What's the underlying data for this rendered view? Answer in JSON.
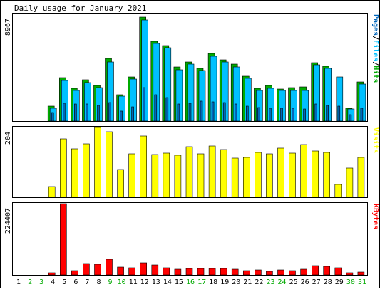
{
  "chart_data": {
    "type": "bar",
    "title": "Daily usage for January 2021",
    "categories": [
      "1",
      "2",
      "3",
      "4",
      "5",
      "6",
      "7",
      "8",
      "9",
      "10",
      "11",
      "12",
      "13",
      "14",
      "15",
      "16",
      "17",
      "18",
      "19",
      "20",
      "21",
      "22",
      "23",
      "24",
      "25",
      "26",
      "27",
      "28",
      "29",
      "30",
      "31"
    ],
    "weekend_days": [
      "2",
      "3",
      "9",
      "10",
      "16",
      "17",
      "23",
      "24",
      "30",
      "31"
    ],
    "colors": {
      "background": "#ffffff",
      "panel_border": "#000000",
      "hits": "#00aa00",
      "files": "#00c0ff",
      "pages": "#0066bb",
      "visits": "#ffff00",
      "kbytes": "#ff0000",
      "weekday_label": "#000000",
      "weekend_label": "#00aa00"
    },
    "panels": [
      {
        "name": "pages-files-hits",
        "ymax_label": "8967",
        "ylim": [
          0,
          8967
        ],
        "legend": [
          {
            "text": "Pages",
            "color": "#0066bb"
          },
          {
            "text": "/",
            "color": "#000000"
          },
          {
            "text": "Files",
            "color": "#00c0ff"
          },
          {
            "text": "/",
            "color": "#000000"
          },
          {
            "text": "Hits",
            "color": "#00aa00"
          }
        ],
        "series": [
          {
            "name": "Hits",
            "values": [
              0,
              0,
              0,
              1260,
              3640,
              2770,
              3460,
              2960,
              5240,
              2230,
              3720,
              8740,
              6710,
              6360,
              4520,
              4960,
              4420,
              5650,
              5160,
              4770,
              3770,
              2740,
              2960,
              2700,
              2790,
              2840,
              4880,
              4620,
              0,
              1080,
              3300
            ]
          },
          {
            "name": "Files",
            "values": [
              0,
              0,
              0,
              1070,
              3420,
              2560,
              3220,
              2800,
              4960,
              2080,
              3540,
              8500,
              6520,
              6160,
              4310,
              4770,
              4260,
              5420,
              4950,
              4560,
              3570,
              2590,
              2770,
              2550,
              2590,
              2590,
              4700,
              4410,
              3710,
              1000,
              3110
            ]
          },
          {
            "name": "Pages",
            "values": [
              0,
              0,
              0,
              700,
              1520,
              1420,
              1430,
              1310,
              1560,
              820,
              1220,
              2820,
              2230,
              1980,
              1410,
              1520,
              1670,
              1590,
              1540,
              1450,
              1250,
              1120,
              1050,
              1090,
              1070,
              1030,
              1410,
              1340,
              1280,
              540,
              1070
            ]
          }
        ]
      },
      {
        "name": "visits",
        "ymax_label": "204",
        "ylim": [
          0,
          204
        ],
        "legend": [
          {
            "text": "Visits",
            "color": "#ffff00"
          }
        ],
        "series": [
          {
            "name": "Visits",
            "values": [
              0,
              0,
              0,
              32,
              170,
              141,
              157,
              204,
              192,
              81,
              128,
              180,
              125,
              130,
              122,
              148,
              126,
              150,
              139,
              114,
              116,
              131,
              127,
              143,
              130,
              153,
              136,
              132,
              37,
              86,
              116
            ]
          }
        ]
      },
      {
        "name": "kbytes",
        "ymax_label": "224407",
        "ylim": [
          0,
          224407
        ],
        "legend": [
          {
            "text": "KBytes",
            "color": "#ff0000"
          }
        ],
        "series": [
          {
            "name": "KBytes",
            "values": [
              0,
              0,
              0,
              6300,
              224407,
              14500,
              35500,
              33200,
              49100,
              24900,
              22800,
              38600,
              31100,
              22600,
              18300,
              21300,
              20200,
              21200,
              20800,
              17200,
              14500,
              15600,
              12300,
              15100,
              12700,
              17400,
              28200,
              27900,
              22600,
              6100,
              8400
            ]
          }
        ]
      }
    ]
  }
}
